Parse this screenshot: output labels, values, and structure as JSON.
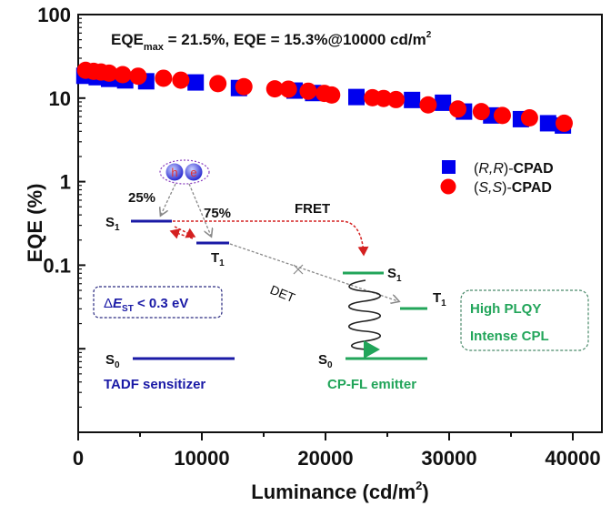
{
  "chart_data": {
    "type": "scatter",
    "title": "EQE_max = 21.5%, EQE = 15.3%@10000 cd/m²",
    "title_parts": {
      "main": "EQE",
      "sub": "max",
      "rest": " = 21.5%, EQE = 15.3%@10000 cd/m",
      "sup": "2"
    },
    "xlabel": "Luminance (cd/m²)",
    "xlabel_parts": {
      "main": "Luminance (cd/m",
      "sup": "2",
      "end": ")"
    },
    "ylabel": "EQE (%)",
    "xlim": [
      0,
      42300
    ],
    "ylim": [
      0.001,
      100
    ],
    "yscale": "log",
    "xticks": [
      0,
      10000,
      20000,
      30000,
      40000
    ],
    "xtick_labels": [
      "0",
      "10000",
      "20000",
      "30000",
      "40000"
    ],
    "yticks": [
      100,
      10,
      1,
      0.1
    ],
    "ytick_labels": [
      "100",
      "10",
      "1",
      "0.1"
    ],
    "legend_position": "right",
    "series": [
      {
        "name": "(R,R)-CPAD",
        "name_parts": {
          "italic": "R,R",
          "bold": "CPAD"
        },
        "marker": "square",
        "color": "#0000ee",
        "x": [
          500,
          1500,
          2500,
          3800,
          5500,
          9500,
          13000,
          17500,
          19000,
          22500,
          27000,
          29500,
          31200,
          33400,
          35800,
          38000,
          39200
        ],
        "y": [
          18.5,
          17.8,
          17.0,
          16.3,
          15.9,
          15.4,
          13.2,
          12.3,
          11.5,
          10.3,
          9.5,
          8.8,
          6.9,
          6.2,
          5.6,
          5.0,
          4.7
        ]
      },
      {
        "name": "(S,S)-CPAD",
        "name_parts": {
          "italic": "S,S",
          "bold": "CPAD"
        },
        "marker": "circle",
        "color": "#ff0000",
        "x": [
          600,
          1250,
          1850,
          2500,
          3600,
          4850,
          6900,
          8300,
          11300,
          13400,
          15900,
          17000,
          18600,
          19900,
          20500,
          23800,
          24700,
          25700,
          28300,
          30700,
          32600,
          34300,
          36500,
          39300
        ],
        "y": [
          21.5,
          20.9,
          20.5,
          19.9,
          19.1,
          18.3,
          17.3,
          16.4,
          14.9,
          13.7,
          12.9,
          12.8,
          12.1,
          11.4,
          10.9,
          10.1,
          9.9,
          9.6,
          8.3,
          7.4,
          6.9,
          6.2,
          5.8,
          5.0
        ]
      }
    ]
  },
  "diagram": {
    "hole_label": "h",
    "electron_label": "e",
    "pct_singlet": "25%",
    "pct_triplet": "75%",
    "tadf_s1": {
      "main": "S",
      "sub": "1"
    },
    "tadf_t1": {
      "main": "T",
      "sub": "1"
    },
    "tadf_s0": {
      "main": "S",
      "sub": "0"
    },
    "fl_s1": {
      "main": "S",
      "sub": "1"
    },
    "fl_t1": {
      "main": "T",
      "sub": "1"
    },
    "fl_s0": {
      "main": "S",
      "sub": "0"
    },
    "fret_label": "FRET",
    "det_label": "DET",
    "delta_est": {
      "delta": "Δ",
      "E": "E",
      "sub": "ST",
      "rest": " < 0.3 eV"
    },
    "tadf_label": "TADF sensitizer",
    "fl_label": "CP-FL emitter",
    "box_line1": "High PLQY",
    "box_line2": "Intense CPL",
    "colors": {
      "tadf": "#1a1aa6",
      "fl": "#22a55a",
      "fret": "#d42020",
      "det": "#888888"
    }
  }
}
